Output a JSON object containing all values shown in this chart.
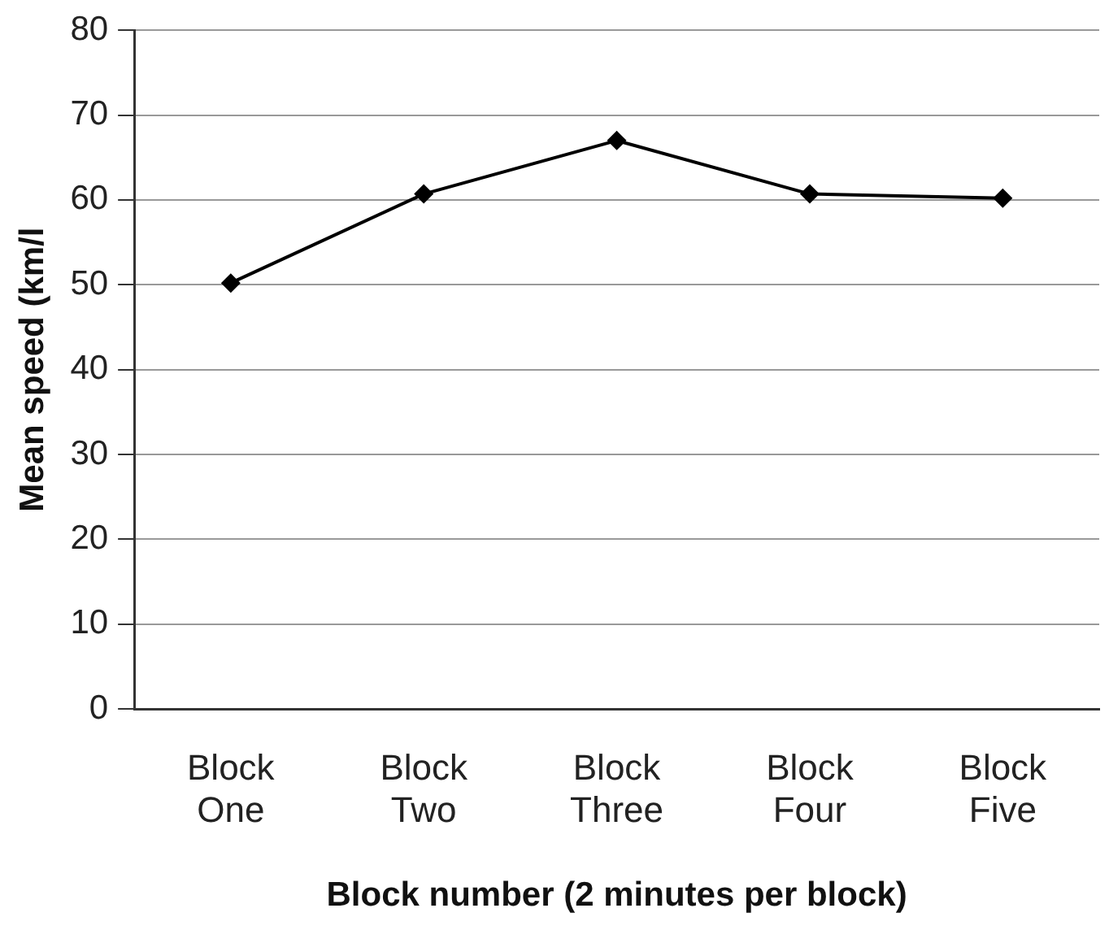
{
  "chart_data": {
    "type": "line",
    "xlabel": "Block number (2 minutes per block)",
    "ylabel": "Mean speed (km/l",
    "categories": [
      "Block One",
      "Block Two",
      "Block Three",
      "Block Four",
      "Block Five"
    ],
    "series": [
      {
        "color": "#000000",
        "values": [
          50.2,
          60.7,
          67.0,
          60.7,
          60.2
        ]
      }
    ],
    "ylim": [
      0,
      80
    ],
    "yticks": [
      0,
      10,
      20,
      30,
      40,
      50,
      60,
      70,
      80
    ],
    "grid": "y",
    "legend": false,
    "marker": "diamond",
    "line_style": "solid"
  }
}
